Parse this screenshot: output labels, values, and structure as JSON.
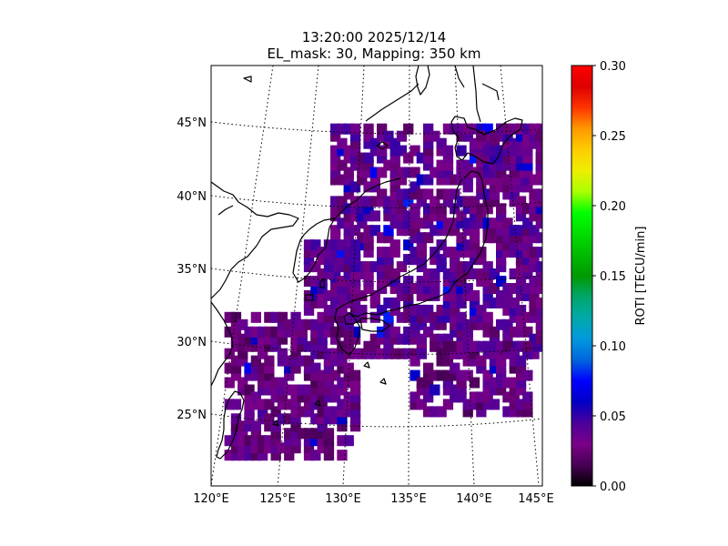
{
  "title": {
    "line1": "13:20:00 2025/12/14",
    "line2": "EL_mask: 30, Mapping: 350 km"
  },
  "map": {
    "lon_range": [
      120,
      145
    ],
    "lat_range": [
      20,
      49
    ],
    "projection": "conic (curved parallels, converging meridians)",
    "gridlines": "dotted",
    "coastline_color": "#000000",
    "lat_labels": [
      "45°N",
      "40°N",
      "35°N",
      "30°N",
      "25°N"
    ],
    "lon_labels": [
      "120°E",
      "125°E",
      "130°E",
      "135°E",
      "140°E",
      "145°E"
    ]
  },
  "colorbar": {
    "label": "ROTI [TECU/min]",
    "min": 0.0,
    "max": 0.3,
    "ticks": [
      "0.00",
      "0.05",
      "0.10",
      "0.15",
      "0.20",
      "0.25",
      "0.30"
    ],
    "colormap": "nipy_spectral"
  },
  "chart_data": {
    "type": "heatmap",
    "variable": "ROTI",
    "units": "TECU/min",
    "value_range": [
      0.0,
      0.3
    ],
    "typical_value": 0.035,
    "max_value_approx": 0.07,
    "coverage_regions": [
      {
        "region": "Japan main islands and surrounding sea",
        "lon": [
          129,
          145
        ],
        "lat": [
          29,
          45
        ],
        "roti": 0.035
      },
      {
        "region": "Hokkaido / Kuril area",
        "lon": [
          140,
          145
        ],
        "lat": [
          41,
          45
        ],
        "roti": 0.035
      },
      {
        "region": "East China Sea / Ryukyu arc",
        "lon": [
          121,
          131
        ],
        "lat": [
          22,
          32
        ],
        "roti": 0.03
      },
      {
        "region": "Korea Strait / Tsushima",
        "lon": [
          127,
          131
        ],
        "lat": [
          32,
          37
        ],
        "roti": 0.035
      },
      {
        "region": "Philippine Sea south of Honshu",
        "lon": [
          135,
          144
        ],
        "lat": [
          25,
          30
        ],
        "roti": 0.03
      }
    ]
  }
}
